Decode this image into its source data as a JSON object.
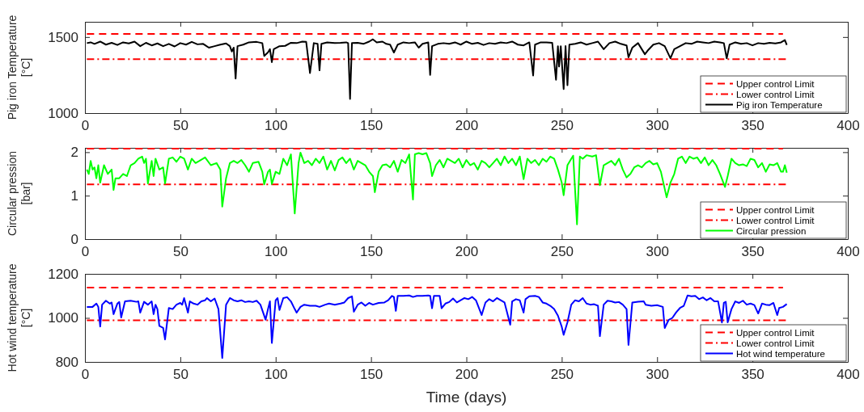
{
  "chart_data": [
    {
      "type": "line",
      "ylabel": "Pig iron Temperature [°C]",
      "xlim": [
        0,
        400
      ],
      "xticks": [
        0,
        50,
        100,
        150,
        200,
        250,
        300,
        350,
        400
      ],
      "ylim": [
        1000,
        1600
      ],
      "yticks": [
        1000,
        1500
      ],
      "legend": "bottom right",
      "series": [
        {
          "name": "Upper control Limit",
          "color": "#ff0000",
          "line_style": "dashed",
          "x": [
            1,
            366
          ],
          "values": [
            1520,
            1520
          ]
        },
        {
          "name": "Lower control Limit",
          "color": "#ff0000",
          "line_style": "dashdot",
          "x": [
            1,
            368
          ],
          "values": [
            1355,
            1355
          ]
        },
        {
          "name": "Pig iron Temperature",
          "color": "#000000",
          "line_style": "solid",
          "x": [
            1,
            3,
            5,
            8,
            11,
            14,
            17,
            20,
            23,
            26,
            29,
            32,
            35,
            38,
            41,
            44,
            47,
            50,
            53,
            56,
            59,
            62,
            65,
            68,
            71,
            74,
            76,
            77,
            78,
            79,
            80,
            83,
            86,
            90,
            93,
            94,
            96,
            97,
            98,
            99,
            102,
            105,
            108,
            111,
            114,
            116,
            118,
            120,
            122,
            123,
            124,
            127,
            131,
            134,
            137,
            138,
            139,
            140,
            143,
            146,
            149,
            151,
            153,
            156,
            158,
            160,
            162,
            164,
            167,
            170,
            173,
            175,
            177,
            180,
            181,
            182,
            185,
            188,
            191,
            194,
            197,
            200,
            203,
            206,
            209,
            212,
            215,
            218,
            221,
            224,
            227,
            230,
            233,
            235,
            236,
            239,
            242,
            245,
            247,
            248,
            248.6,
            249.5,
            251,
            252,
            253,
            254,
            257,
            260,
            263,
            266,
            269,
            272,
            275,
            278,
            281,
            284,
            285,
            287,
            290,
            293.6,
            295,
            298,
            301,
            304,
            307,
            309,
            312,
            315,
            318,
            321,
            324,
            327,
            330,
            333,
            335,
            336.5,
            338,
            341,
            344,
            347,
            350,
            353,
            356,
            359,
            362,
            365,
            367,
            368
          ],
          "values": [
            1460,
            1465,
            1455,
            1470,
            1450,
            1462,
            1448,
            1465,
            1458,
            1470,
            1440,
            1462,
            1445,
            1458,
            1440,
            1455,
            1438,
            1460,
            1450,
            1468,
            1452,
            1455,
            1430,
            1440,
            1450,
            1458,
            1440,
            1405,
            1430,
            1227,
            1440,
            1450,
            1465,
            1468,
            1460,
            1376,
            1400,
            1420,
            1335,
            1420,
            1440,
            1442,
            1462,
            1460,
            1470,
            1468,
            1263,
            1460,
            1455,
            1281,
            1455,
            1465,
            1460,
            1462,
            1465,
            1460,
            1093,
            1460,
            1462,
            1455,
            1470,
            1485,
            1465,
            1470,
            1455,
            1450,
            1398,
            1450,
            1465,
            1460,
            1465,
            1430,
            1455,
            1465,
            1251,
            1440,
            1455,
            1460,
            1455,
            1465,
            1450,
            1470,
            1455,
            1462,
            1448,
            1460,
            1455,
            1465,
            1460,
            1470,
            1450,
            1445,
            1465,
            1247,
            1450,
            1465,
            1465,
            1462,
            1219,
            1440,
            1306,
            1440,
            1158,
            1441,
            1183,
            1450,
            1455,
            1465,
            1450,
            1460,
            1470,
            1420,
            1460,
            1470,
            1455,
            1445,
            1367,
            1430,
            1460,
            1387,
            1410,
            1450,
            1460,
            1440,
            1360,
            1420,
            1440,
            1460,
            1455,
            1470,
            1465,
            1460,
            1470,
            1465,
            1460,
            1360,
            1450,
            1465,
            1455,
            1460,
            1445,
            1460,
            1455,
            1462,
            1458,
            1465,
            1480,
            1448
          ]
        }
      ]
    },
    {
      "type": "line",
      "ylabel": "Circular pression [bar]",
      "xlim": [
        0,
        400
      ],
      "xticks": [
        0,
        50,
        100,
        150,
        200,
        250,
        300,
        350,
        400
      ],
      "ylim": [
        0,
        2.1
      ],
      "yticks": [
        0,
        1,
        2
      ],
      "legend": "bottom right",
      "series": [
        {
          "name": "Upper control Limit",
          "color": "#ff0000",
          "line_style": "dashed",
          "x": [
            1,
            366
          ],
          "values": [
            2.08,
            2.08
          ]
        },
        {
          "name": "Lower control Limit",
          "color": "#ff0000",
          "line_style": "dashdot",
          "x": [
            1,
            368
          ],
          "values": [
            1.26,
            1.26
          ]
        },
        {
          "name": "Circular pression",
          "color": "#00ff00",
          "line_style": "solid",
          "x": [
            1,
            2,
            3,
            4,
            5,
            6,
            7,
            8,
            10,
            12,
            14,
            15,
            16,
            18,
            20,
            22,
            24,
            26,
            28,
            30,
            31,
            32,
            33,
            35,
            36,
            37,
            39,
            41,
            42,
            44,
            46,
            48,
            50,
            52,
            54,
            56,
            58,
            60,
            63,
            66,
            69,
            71,
            72,
            74,
            76,
            78,
            80,
            82,
            84,
            86,
            88,
            91,
            93,
            94,
            96,
            97,
            98,
            100,
            102,
            104,
            106,
            108,
            110,
            112,
            113,
            115,
            117,
            119,
            121,
            123,
            125,
            127,
            129,
            131,
            133,
            135,
            137,
            139,
            141,
            143,
            145,
            147,
            149,
            151,
            152,
            154,
            156,
            158,
            160,
            162,
            164,
            166,
            168,
            170,
            172,
            173,
            175,
            177,
            179,
            181,
            182,
            184,
            186,
            188,
            190,
            192,
            194,
            196,
            198,
            200,
            202,
            204,
            206,
            208,
            210,
            212,
            214,
            216,
            218,
            220,
            222,
            224,
            226,
            228,
            230,
            232,
            234,
            236,
            238,
            240,
            242,
            244,
            246,
            248,
            250,
            251,
            253,
            255,
            256,
            258,
            259.5,
            261,
            263,
            266,
            268,
            270,
            272,
            274,
            276,
            278,
            280,
            282,
            284,
            286,
            288,
            290,
            292,
            294,
            296,
            298,
            300,
            302,
            305,
            307,
            309,
            311,
            313,
            315,
            317,
            319,
            321,
            323,
            325,
            327,
            329,
            331,
            333,
            335.6,
            337,
            339,
            341,
            343,
            345,
            347,
            349,
            351,
            353,
            355,
            357,
            359,
            361,
            363,
            365,
            366,
            367,
            368
          ],
          "values": [
            1.6,
            1.5,
            1.8,
            1.6,
            1.65,
            1.4,
            1.7,
            1.3,
            1.7,
            1.5,
            1.6,
            1.13,
            1.4,
            1.4,
            1.5,
            1.45,
            1.7,
            1.75,
            1.85,
            1.9,
            1.75,
            1.85,
            1.28,
            1.8,
            1.45,
            1.85,
            1.6,
            1.65,
            1.28,
            1.85,
            1.88,
            1.78,
            1.9,
            1.85,
            1.6,
            1.85,
            1.75,
            1.8,
            1.88,
            1.7,
            1.75,
            1.6,
            0.75,
            1.4,
            1.75,
            1.8,
            1.75,
            1.82,
            1.7,
            1.55,
            1.75,
            1.78,
            1.55,
            1.26,
            1.55,
            1.6,
            1.27,
            1.55,
            1.5,
            1.85,
            1.7,
            1.95,
            0.59,
            1.75,
            1.99,
            1.75,
            1.8,
            1.7,
            1.85,
            1.75,
            1.9,
            1.6,
            1.8,
            1.58,
            1.82,
            1.88,
            1.75,
            1.85,
            1.6,
            1.8,
            1.75,
            1.7,
            1.55,
            1.45,
            1.08,
            1.55,
            1.7,
            1.72,
            1.65,
            1.8,
            1.55,
            1.82,
            1.75,
            1.95,
            0.91,
            1.95,
            1.98,
            1.95,
            1.98,
            1.75,
            1.45,
            1.7,
            1.82,
            1.65,
            1.85,
            1.8,
            1.75,
            1.85,
            1.65,
            1.82,
            1.7,
            1.75,
            1.6,
            1.8,
            1.75,
            1.65,
            1.75,
            1.85,
            1.7,
            1.9,
            1.75,
            1.85,
            1.7,
            1.9,
            1.38,
            1.85,
            1.75,
            1.82,
            1.7,
            1.85,
            1.78,
            1.9,
            1.85,
            1.6,
            1.3,
            1.01,
            1.7,
            1.85,
            1.92,
            0.34,
            1.9,
            1.85,
            1.93,
            1.9,
            1.93,
            1.24,
            1.7,
            1.75,
            1.8,
            1.7,
            1.85,
            1.6,
            1.42,
            1.5,
            1.65,
            1.7,
            1.65,
            1.75,
            1.8,
            1.72,
            1.75,
            1.55,
            0.96,
            1.3,
            1.5,
            1.85,
            1.9,
            1.75,
            1.9,
            1.85,
            1.88,
            1.75,
            1.88,
            1.7,
            1.82,
            1.7,
            1.5,
            1.2,
            1.45,
            1.85,
            1.75,
            1.7,
            1.72,
            1.68,
            1.85,
            1.82,
            1.65,
            1.75,
            1.55,
            1.72,
            1.7,
            1.75,
            1.55,
            1.55,
            1.7,
            1.53
          ]
        }
      ]
    },
    {
      "type": "line",
      "ylabel": "Hot wind temperature [°C]",
      "xlabel": "Time (days)",
      "xlim": [
        0,
        400
      ],
      "xticks": [
        0,
        50,
        100,
        150,
        200,
        250,
        300,
        350,
        400
      ],
      "ylim": [
        800,
        1200
      ],
      "yticks": [
        800,
        1000,
        1200
      ],
      "legend": "bottom right",
      "series": [
        {
          "name": "Upper control Limit",
          "color": "#ff0000",
          "line_style": "dashed",
          "x": [
            1,
            366
          ],
          "values": [
            1138,
            1138
          ]
        },
        {
          "name": "Lower control Limit",
          "color": "#ff0000",
          "line_style": "dashdot",
          "x": [
            1,
            368
          ],
          "values": [
            989,
            989
          ]
        },
        {
          "name": "Hot wind temperature",
          "color": "#0000ff",
          "line_style": "solid",
          "x": [
            1,
            4,
            6,
            7,
            8,
            9,
            11,
            13,
            14,
            15,
            17,
            18,
            19,
            21,
            24,
            27,
            28,
            29,
            31,
            33,
            35,
            36,
            37,
            38,
            39,
            41,
            42,
            44,
            46,
            48,
            50,
            51,
            52,
            54,
            55,
            57,
            59,
            61,
            63,
            64,
            66,
            68,
            70,
            72,
            74,
            76,
            78,
            80,
            82,
            84,
            86,
            88,
            90,
            92,
            94.7,
            96,
            97,
            98,
            100,
            101,
            102,
            104,
            106,
            108,
            110,
            111,
            113,
            115,
            118,
            121,
            123,
            126,
            128,
            131,
            134,
            136,
            138,
            140,
            141,
            143,
            145,
            147,
            149,
            151,
            154,
            157,
            159,
            161,
            162,
            163,
            164,
            167,
            170,
            172,
            174,
            177,
            180,
            181,
            182,
            183,
            185,
            186,
            187,
            189,
            191,
            193,
            195,
            197,
            199,
            201,
            203,
            205,
            208,
            210,
            212,
            214,
            216,
            218,
            220,
            223,
            224,
            226,
            228,
            230,
            231,
            233,
            236,
            238,
            240,
            242,
            244,
            246,
            248,
            250,
            251,
            253,
            255,
            257,
            259,
            261,
            263,
            265,
            267,
            269,
            270,
            272,
            274,
            276,
            278,
            280,
            282,
            284,
            285,
            287,
            290,
            293,
            294,
            297,
            300,
            303,
            304,
            306,
            308,
            310,
            312,
            314,
            316,
            318,
            320,
            322,
            324,
            326,
            328,
            330,
            332,
            334,
            335,
            336,
            337,
            339,
            341,
            343,
            345,
            347,
            349,
            351,
            353,
            355,
            357,
            359,
            361,
            363,
            364,
            366,
            368
          ],
          "values": [
            1050,
            1050,
            1065,
            1050,
            961,
            1060,
            1078,
            1065,
            1070,
            1017,
            1065,
            1072,
            1002,
            1075,
            1078,
            1073,
            1075,
            1024,
            1073,
            1060,
            1075,
            1017,
            1060,
            1040,
            964,
            955,
            902,
            1045,
            1040,
            1060,
            1068,
            1060,
            1090,
            1024,
            1075,
            1065,
            1060,
            1075,
            1080,
            1090,
            1075,
            1088,
            1040,
            818,
            1060,
            1090,
            1080,
            1075,
            1080,
            1072,
            1075,
            1072,
            1078,
            1060,
            992,
            1040,
            1075,
            886,
            1080,
            1090,
            1036,
            1090,
            1094,
            1075,
            1040,
            1024,
            1050,
            1060,
            1055,
            1055,
            1050,
            1060,
            1065,
            1060,
            1065,
            1070,
            1090,
            1098,
            1028,
            1060,
            1070,
            1055,
            1068,
            1060,
            1068,
            1070,
            1080,
            1100,
            1095,
            1032,
            1100,
            1100,
            1102,
            1095,
            1100,
            1100,
            1102,
            1100,
            1044,
            1100,
            1100,
            1100,
            1044,
            1065,
            1072,
            1088,
            1070,
            1080,
            1090,
            1085,
            1095,
            1080,
            1013,
            1070,
            1085,
            1075,
            1090,
            1080,
            1070,
            969,
            1075,
            1085,
            1080,
            1024,
            1085,
            1098,
            1100,
            1095,
            1070,
            1065,
            1055,
            1040,
            1010,
            960,
            923,
            980,
            1060,
            1080,
            1075,
            1090,
            1065,
            1060,
            1062,
            1055,
            917,
            1060,
            1078,
            1075,
            1070,
            1072,
            1060,
            1040,
            877,
            1070,
            1073,
            1075,
            1060,
            1055,
            1058,
            1050,
            954,
            990,
            1000,
            1025,
            1045,
            1055,
            1102,
            1098,
            1100,
            1085,
            1093,
            1080,
            1090,
            1075,
            1075,
            979,
            1068,
            1073,
            980,
            1040,
            1075,
            1068,
            1078,
            1060,
            1065,
            1058,
            1020,
            1065,
            1060,
            1058,
            1068,
            1013,
            1045,
            1050,
            1063
          ]
        }
      ]
    }
  ]
}
